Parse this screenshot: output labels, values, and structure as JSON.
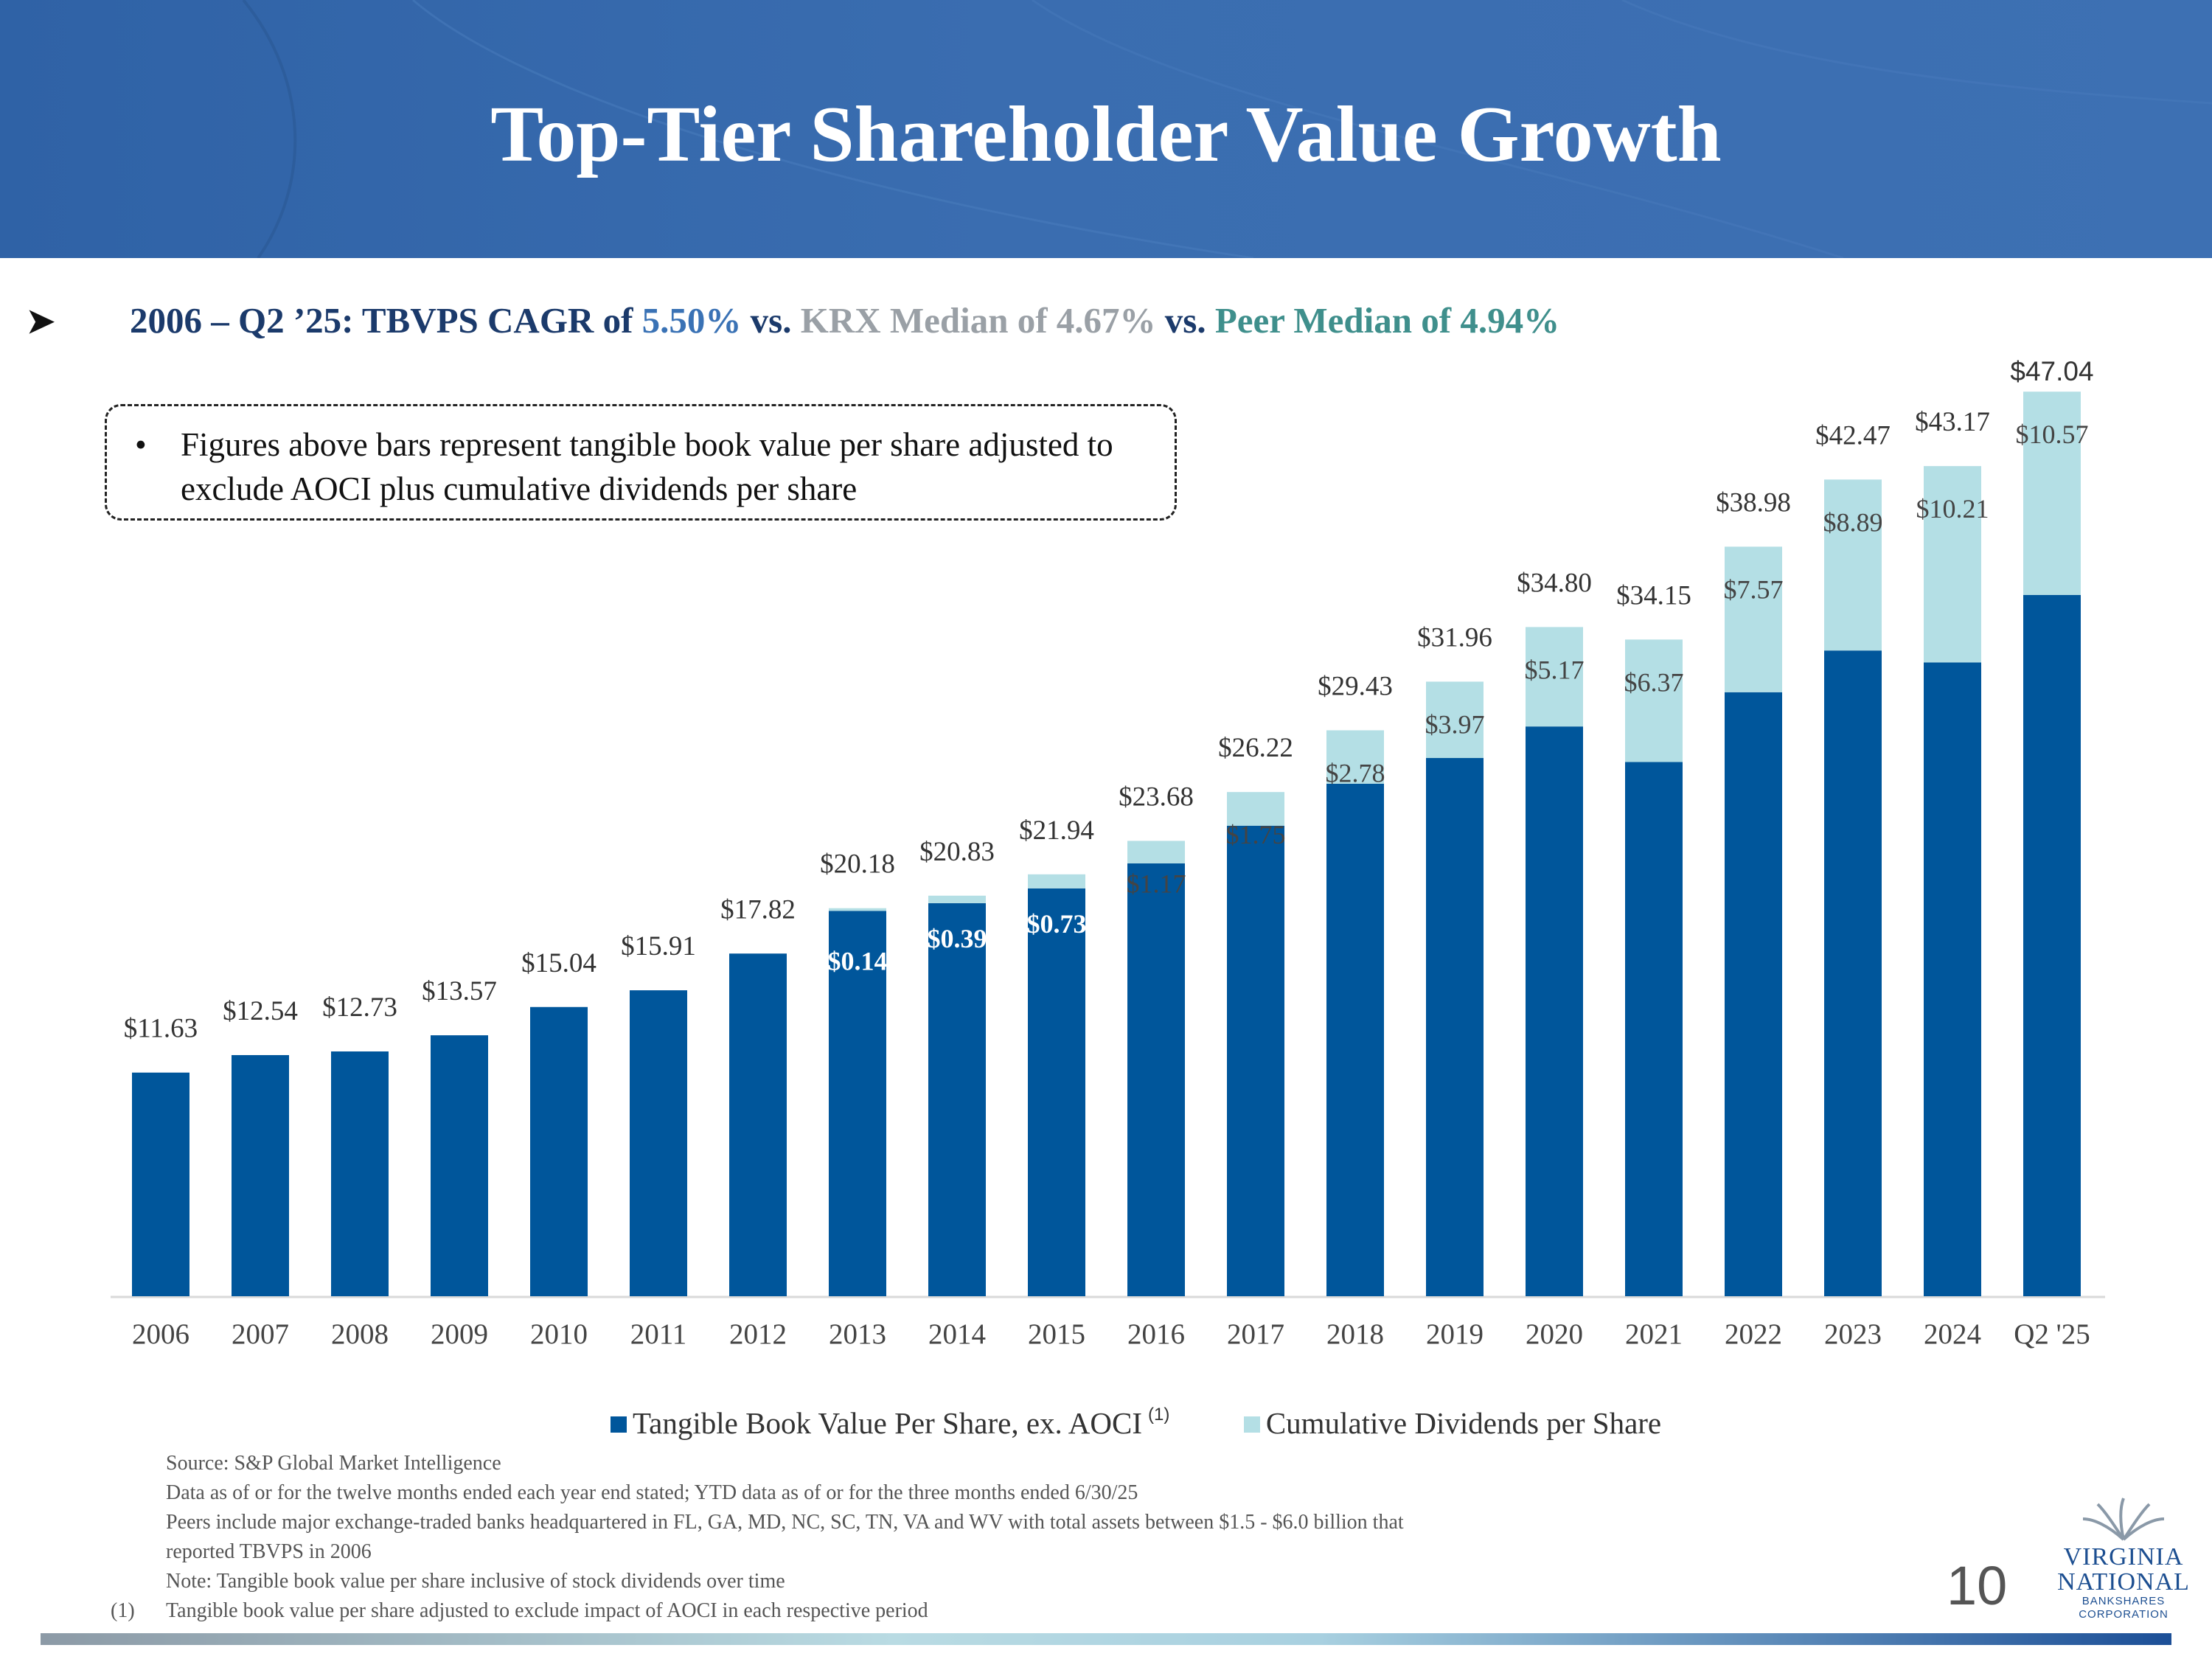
{
  "header": {
    "title": "Top-Tier Shareholder Value Growth"
  },
  "subheading": {
    "part1": "2006 – Q2 ’25: TBVPS CAGR of ",
    "cagr_value": "5.50%",
    "vs1": " vs. ",
    "krx_text": "KRX Median of 4.67%",
    "vs2": " vs. ",
    "peer_text": "Peer Median of 4.94%"
  },
  "note_box": {
    "bullet": "•",
    "text": "Figures above bars represent tangible book value per share adjusted to exclude AOCI plus cumulative dividends per share"
  },
  "chart_data": {
    "type": "bar",
    "stacked": true,
    "categories": [
      "2006",
      "2007",
      "2008",
      "2009",
      "2010",
      "2011",
      "2012",
      "2013",
      "2014",
      "2015",
      "2016",
      "2017",
      "2018",
      "2019",
      "2020",
      "2021",
      "2022",
      "2023",
      "2024",
      "Q2 '25"
    ],
    "series": [
      {
        "name": "Tangible Book Value Per Share, ex. AOCI",
        "color": "#00569b",
        "values": [
          11.63,
          12.54,
          12.73,
          13.57,
          15.04,
          15.91,
          17.82,
          20.04,
          20.44,
          21.21,
          22.51,
          24.47,
          26.65,
          27.99,
          29.63,
          27.78,
          31.41,
          33.58,
          32.96,
          36.47
        ]
      },
      {
        "name": "Cumulative Dividends per Share",
        "color": "#b4dfe5",
        "values": [
          0,
          0,
          0,
          0,
          0,
          0,
          0,
          0.14,
          0.39,
          0.73,
          1.17,
          1.75,
          2.78,
          3.97,
          5.17,
          6.37,
          7.57,
          8.89,
          10.21,
          10.57
        ]
      }
    ],
    "totals": [
      11.63,
      12.54,
      12.73,
      13.57,
      15.04,
      15.91,
      17.82,
      20.18,
      20.83,
      21.94,
      23.68,
      26.22,
      29.43,
      31.96,
      34.8,
      34.15,
      38.98,
      42.47,
      43.17,
      47.04
    ],
    "total_labels": [
      "$11.63",
      "$12.54",
      "$12.73",
      "$13.57",
      "$15.04",
      "$15.91",
      "$17.82",
      "$20.18",
      "$20.83",
      "$21.94",
      "$23.68",
      "$26.22",
      "$29.43",
      "$31.96",
      "$34.80",
      "$34.15",
      "$38.98",
      "$42.47",
      "$43.17",
      "$47.04"
    ],
    "dividend_labels": [
      "",
      "",
      "",
      "",
      "",
      "",
      "",
      "$0.14",
      "$0.39",
      "$0.73",
      "$1.17",
      "$1.75",
      "$2.78",
      "$3.97",
      "$5.17",
      "$6.37",
      "$7.57",
      "$8.89",
      "$10.21",
      "$10.57"
    ],
    "ylim": [
      0,
      48
    ],
    "title": "",
    "xlabel": "",
    "ylabel": ""
  },
  "legend": {
    "item1": "Tangible Book Value Per Share, ex. AOCI",
    "item1_sup": "(1)",
    "item2": "Cumulative Dividends per Share"
  },
  "footnotes": {
    "lines": [
      "Source: S&P Global Market Intelligence",
      "Data as of or for the twelve months ended each year end stated; YTD data as of or for the three months ended 6/30/25",
      "Peers include major exchange-traded banks headquartered in FL, GA, MD, NC, SC, TN, VA and WV with total assets between $1.5 - $6.0 billion that",
      "reported TBVPS in 2006",
      "Note: Tangible book value per share inclusive of stock dividends over time",
      "Tangible book value per share adjusted to exclude impact of AOCI in each respective period"
    ],
    "num": "(1)"
  },
  "page_number": "10",
  "logo": {
    "line1": "VIRGINIA",
    "line2": "NATIONAL",
    "line3": "BANKSHARES",
    "line4": "CORPORATION"
  }
}
